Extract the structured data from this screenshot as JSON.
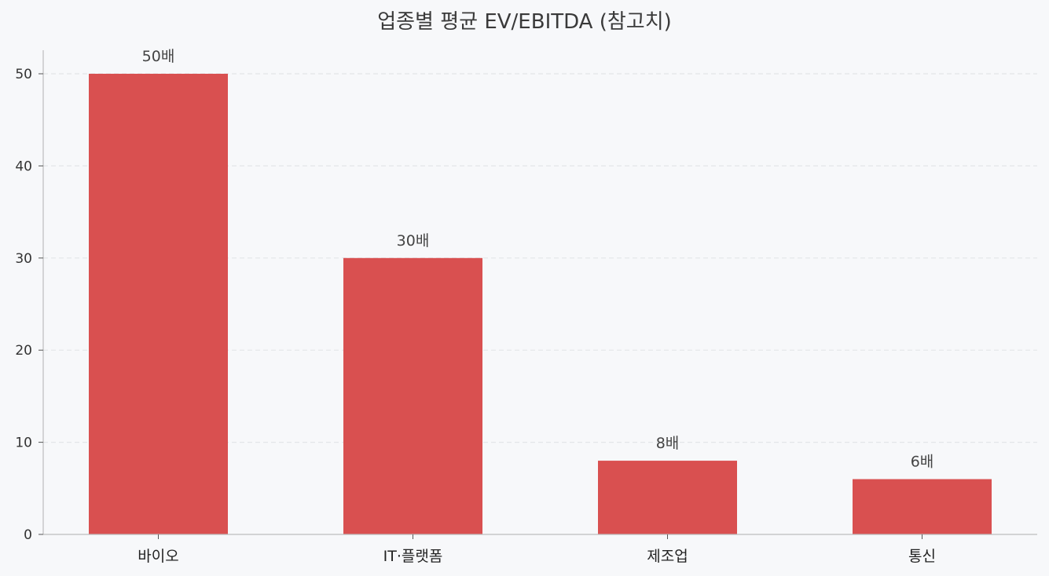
{
  "chart_data": {
    "type": "bar",
    "title": "업종별 평균 EV/EBITDA (참고치)",
    "xlabel": "",
    "ylabel": "",
    "categories": [
      "바이오",
      "IT·플랫폼",
      "제조업",
      "통신"
    ],
    "values": [
      50,
      30,
      8,
      6
    ],
    "data_labels": [
      "50배",
      "30배",
      "8배",
      "6배"
    ],
    "ylim": [
      0,
      52.5
    ],
    "yticks": [
      0,
      10,
      20,
      30,
      40,
      50
    ],
    "ytick_labels": [
      "0",
      "10",
      "20",
      "30",
      "40",
      "50"
    ],
    "grid": true,
    "grid_axis": "y",
    "grid_style": "dashed",
    "legend": false,
    "bar_color": "#d95050",
    "background_color": "#f7f8fa"
  }
}
